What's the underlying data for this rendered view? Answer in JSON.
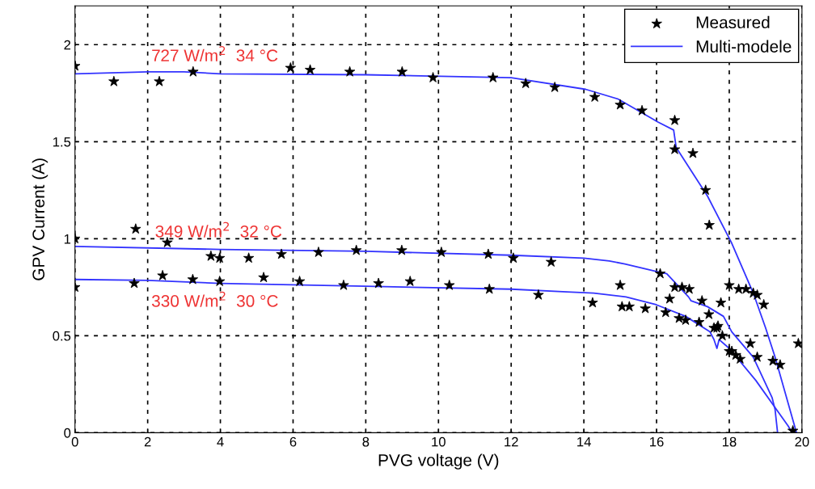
{
  "chart_data": {
    "type": "scatter",
    "xlabel": "PVG voltage (V)",
    "ylabel": "GPV Current (A)",
    "xlim": [
      0,
      20
    ],
    "ylim": [
      0,
      2.2
    ],
    "xticks": [
      0,
      2,
      4,
      6,
      8,
      10,
      12,
      14,
      16,
      18,
      20
    ],
    "yticks": [
      0,
      0.5,
      1,
      1.5,
      2
    ],
    "grid": true,
    "legend": "top right",
    "series": [
      {
        "name": "Measured",
        "marker": "star",
        "color": "#000000",
        "x": [
          0,
          1.07,
          2.32,
          3.25,
          5.93,
          6.47,
          7.56,
          9.0,
          9.85,
          11.5,
          12.4,
          13.2,
          14.3,
          15.0,
          15.6,
          16.5,
          16.5,
          17.0,
          17.35,
          17.45,
          18.0,
          18.26,
          18.46,
          18.66,
          18.77,
          18.95,
          18.58,
          18.77,
          19.2,
          19.4,
          19.75,
          19.9,
          0,
          1.67,
          2.54,
          3.74,
          3.98,
          4.78,
          5.68,
          6.7,
          7.74,
          8.99,
          10.08,
          11.37,
          12.06,
          13.1,
          16.1,
          16.36,
          16.5,
          16.7,
          16.9,
          17.25,
          17.44,
          17.66,
          17.77,
          17.81,
          18.0,
          18.3,
          0,
          1.63,
          2.41,
          3.24,
          3.98,
          5.19,
          6.18,
          7.39,
          8.35,
          9.22,
          10.3,
          11.4,
          12.75,
          14.24,
          15.0,
          15.05,
          15.25,
          15.69,
          16.25,
          16.62,
          16.8,
          17.17,
          17.58,
          17.69,
          18.07,
          18.18
        ],
        "values": [
          1.89,
          1.81,
          1.81,
          1.86,
          1.88,
          1.87,
          1.86,
          1.86,
          1.83,
          1.83,
          1.8,
          1.78,
          1.73,
          1.69,
          1.66,
          1.61,
          1.46,
          1.44,
          1.25,
          1.07,
          0.76,
          0.74,
          0.74,
          0.72,
          0.71,
          0.66,
          0.46,
          0.39,
          0.37,
          0.35,
          0.01,
          0.46,
          1.0,
          1.05,
          0.98,
          0.91,
          0.9,
          0.9,
          0.92,
          0.93,
          0.94,
          0.94,
          0.93,
          0.92,
          0.9,
          0.88,
          0.82,
          0.69,
          0.75,
          0.75,
          0.74,
          0.68,
          0.61,
          0.54,
          0.67,
          0.5,
          0.42,
          0.38,
          0.75,
          0.77,
          0.81,
          0.79,
          0.78,
          0.8,
          0.78,
          0.76,
          0.77,
          0.78,
          0.76,
          0.74,
          0.71,
          0.67,
          0.76,
          0.65,
          0.65,
          0.64,
          0.62,
          0.59,
          0.58,
          0.57,
          0.54,
          0.55,
          0.42,
          0.4
        ]
      },
      {
        "name": "Multi-modele",
        "type": "line",
        "marker": "none",
        "line_style": "solid",
        "color": "#3333ff",
        "x": [
          0,
          1,
          2,
          3,
          4,
          8,
          12,
          14.05,
          14.94,
          16.05,
          16.47,
          16.54,
          17.4,
          18.06,
          18.66,
          19.0,
          19.26,
          19.85
        ],
        "values": [
          1.85,
          1.855,
          1.86,
          1.86,
          1.85,
          1.845,
          1.83,
          1.77,
          1.72,
          1.6,
          1.56,
          1.47,
          1.22,
          0.98,
          0.72,
          0.54,
          0.39,
          0.0
        ]
      },
      {
        "type": "line",
        "marker": "none",
        "line_style": "solid",
        "color": "#3333ff",
        "x": [
          0,
          4,
          8,
          12,
          14,
          14.7,
          15.13,
          16.02,
          16.28,
          16.88,
          16.95,
          17.4,
          17.84,
          18.07,
          18.66,
          19.18,
          19.26,
          19.33
        ],
        "values": [
          0.96,
          0.945,
          0.935,
          0.915,
          0.9,
          0.885,
          0.87,
          0.83,
          0.82,
          0.7,
          0.68,
          0.65,
          0.6,
          0.52,
          0.39,
          0.18,
          0.12,
          0.0
        ]
      },
      {
        "type": "line",
        "marker": "none",
        "line_style": "solid",
        "color": "#3333ff",
        "x": [
          0,
          2,
          4,
          8,
          12,
          13.53,
          14.27,
          15.16,
          15.99,
          16.8,
          17.47,
          17.58,
          17.66,
          17.72,
          18.0,
          18.73,
          19.62,
          19.73
        ],
        "values": [
          0.79,
          0.785,
          0.77,
          0.755,
          0.74,
          0.726,
          0.72,
          0.7,
          0.66,
          0.6,
          0.52,
          0.48,
          0.435,
          0.48,
          0.435,
          0.27,
          0.035,
          0.0
        ]
      }
    ],
    "annotations": [
      "727 W/m$^{2}$  34 °C",
      "349 W/m$^{2}$  32 °C",
      "330 W/m$^{2}$  30 °C"
    ]
  }
}
